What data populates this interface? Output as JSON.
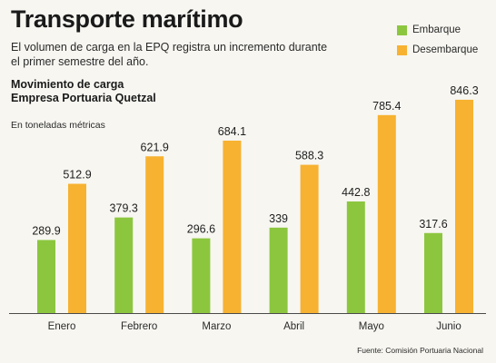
{
  "header": {
    "title": "Transporte marítimo",
    "subtitle": "El volumen de carga en la EPQ registra un incremento durante el primer semestre del año.",
    "chart_title_line1": "Movimiento  de carga",
    "chart_title_line2": "Empresa Portuaria Quetzal",
    "unit": "En toneladas métricas"
  },
  "footer": {
    "source": "Fuente: Comisión Portuaria Nacional"
  },
  "colors": {
    "embarque": "#8cc63f",
    "desembarque": "#f7b231",
    "axis": "#4a4a4a"
  },
  "chart_data": {
    "type": "bar",
    "categories": [
      "Enero",
      "Febrero",
      "Marzo",
      "Abril",
      "Mayo",
      "Junio"
    ],
    "series": [
      {
        "name": "Embarque",
        "values": [
          289.9,
          379.3,
          296.6,
          339,
          442.8,
          317.6
        ],
        "labels": [
          "289.9",
          "379.3",
          "296.6",
          "339",
          "442.8",
          "317.6"
        ]
      },
      {
        "name": "Desembarque",
        "values": [
          512.9,
          621.9,
          684.1,
          588.3,
          785.4,
          846.3
        ],
        "labels": [
          "512.9",
          "621.9",
          "684.1",
          "588.3",
          "785.4",
          "846.3"
        ]
      }
    ],
    "ylim": [
      0,
      900
    ],
    "legend": "top-right",
    "grid": false
  }
}
